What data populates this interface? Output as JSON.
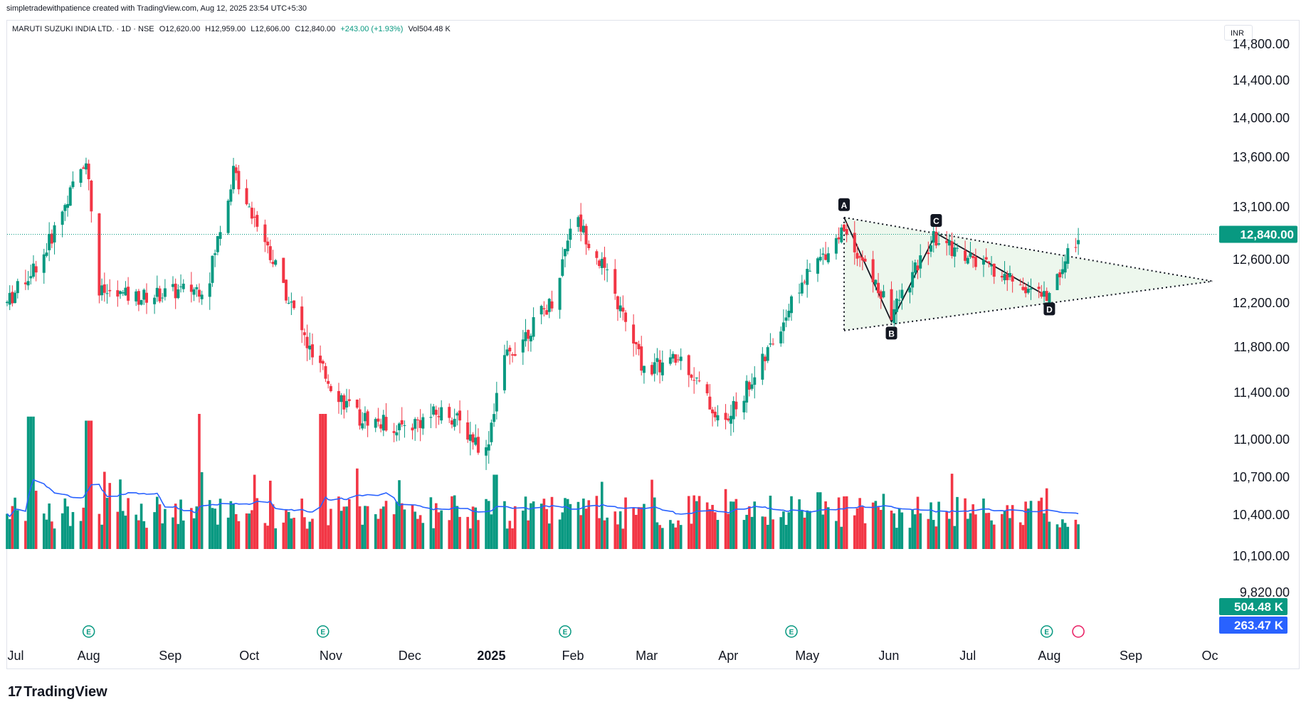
{
  "header": {
    "credit": "simpletradewithpatience created with TradingView.com, Aug 12, 2025 23:54 UTC+5:30",
    "symbol": "MARUTI SUZUKI INDIA LTD. · 1D · NSE",
    "open": "O12,620.00",
    "high": "H12,959.00",
    "low": "L12,606.00",
    "close": "C12,840.00",
    "change": "+243.00 (+1.93%)",
    "volume": "Vol504.48 K"
  },
  "currency": "INR",
  "footer_logo": "TradingView",
  "colors": {
    "up": "#089981",
    "down": "#f23645",
    "volume_ma": "#2962ff",
    "pattern_fill": "#e8f5e9",
    "price_line": "#089981"
  },
  "chart_data": {
    "type": "candlestick",
    "title": "MARUTI SUZUKI INDIA LTD. · 1D · NSE",
    "price_axis_ticks": [
      "14,800.00",
      "14,400.00",
      "14,000.00",
      "13,600.00",
      "13,100.00",
      "12,600.00",
      "12,200.00",
      "11,800.00",
      "11,400.00",
      "11,000.00",
      "10,700.00",
      "10,400.00",
      "10,100.00",
      "9,820.00"
    ],
    "time_axis_labels": [
      "Jul",
      "Aug",
      "Sep",
      "Oct",
      "Nov",
      "Dec",
      "2025",
      "Feb",
      "Mar",
      "Apr",
      "May",
      "Jun",
      "Jul",
      "Aug",
      "Sep",
      "Oc"
    ],
    "last_price_label": "12,840.00",
    "last_price": 12840,
    "volume_label": "504.48 K",
    "volume_ma_label": "263.47 K",
    "price_path": [
      [
        "2024-07-01",
        12200
      ],
      [
        "2024-07-15",
        12650
      ],
      [
        "2024-07-31",
        13600
      ],
      [
        "2024-08-05",
        12300
      ],
      [
        "2024-08-20",
        12250
      ],
      [
        "2024-09-15",
        12350
      ],
      [
        "2024-09-25",
        13450
      ],
      [
        "2024-10-05",
        12900
      ],
      [
        "2024-10-25",
        11700
      ],
      [
        "2024-11-10",
        11200
      ],
      [
        "2024-11-28",
        11100
      ],
      [
        "2024-12-15",
        11250
      ],
      [
        "2024-12-30",
        10900
      ],
      [
        "2025-01-05",
        11650
      ],
      [
        "2025-01-25",
        12250
      ],
      [
        "2025-02-01",
        13050
      ],
      [
        "2025-02-12",
        12550
      ],
      [
        "2025-02-28",
        11600
      ],
      [
        "2025-03-15",
        11700
      ],
      [
        "2025-03-30",
        11100
      ],
      [
        "2025-04-15",
        11700
      ],
      [
        "2025-04-28",
        12350
      ],
      [
        "2025-05-15",
        12900
      ],
      [
        "2025-06-02",
        12100
      ],
      [
        "2025-06-18",
        12800
      ],
      [
        "2025-07-10",
        12500
      ],
      [
        "2025-07-31",
        12250
      ],
      [
        "2025-08-12",
        12840
      ]
    ],
    "annotations": [
      {
        "label": "A",
        "date": "2025-05-15",
        "price": 13000
      },
      {
        "label": "B",
        "date": "2025-06-02",
        "price": 12030
      },
      {
        "label": "C",
        "date": "2025-06-19",
        "price": 12850
      },
      {
        "label": "D",
        "date": "2025-08-01",
        "price": 12250
      }
    ],
    "volume_spikes": [
      {
        "date": "2024-07-10",
        "relative": 0.98
      },
      {
        "date": "2024-08-01",
        "relative": 0.95
      },
      {
        "date": "2024-09-13",
        "relative": 1.0
      },
      {
        "date": "2024-10-29",
        "relative": 1.0
      },
      {
        "date": "2025-01-03",
        "relative": 0.55
      },
      {
        "date": "2025-05-05",
        "relative": 0.42
      }
    ],
    "events": [
      {
        "type": "E",
        "date": "2024-08-01"
      },
      {
        "type": "E",
        "date": "2024-10-29"
      },
      {
        "type": "E",
        "date": "2025-01-29"
      },
      {
        "type": "E",
        "date": "2025-04-25"
      },
      {
        "type": "E",
        "date": "2025-07-31"
      }
    ]
  }
}
